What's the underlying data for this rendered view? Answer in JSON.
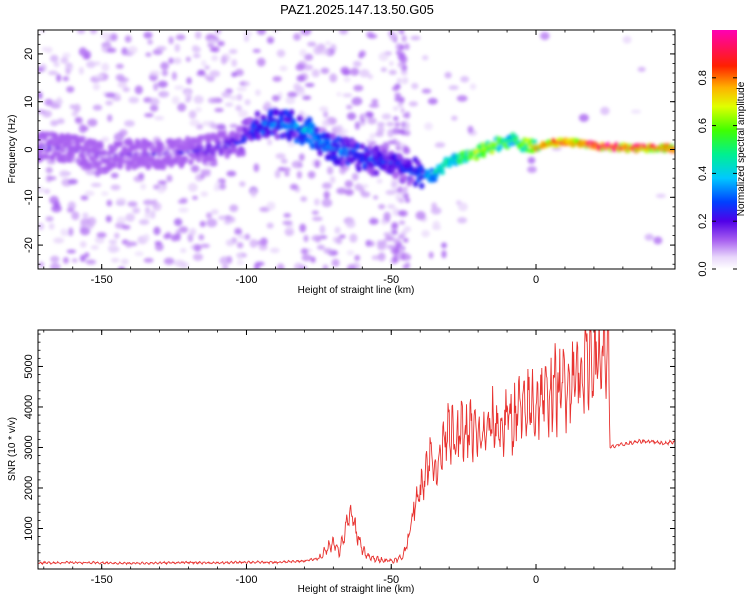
{
  "title": "PAZ1.2025.147.13.50.G05",
  "chart_data": [
    {
      "type": "heatmap",
      "name": "spectrogram",
      "xlabel": "Height of straight line (km)",
      "ylabel": "Frequency (Hz)",
      "xlim": [
        -172,
        48
      ],
      "ylim": [
        -25,
        25
      ],
      "xticks": [
        -150,
        -100,
        -50,
        0
      ],
      "yticks": [
        -20,
        -10,
        0,
        10,
        20
      ],
      "colorbar": {
        "label": "Normalized spectral amplitude",
        "range": [
          0,
          1
        ],
        "ticks": [
          "0.0",
          "0.2",
          "0.4",
          "0.6",
          "0.8"
        ],
        "tick_values": [
          0.0,
          0.2,
          0.4,
          0.6,
          0.8
        ],
        "colormap": "rainbow (white-violet-blue-cyan-green-yellow-red-magenta)"
      },
      "ridge": {
        "x": [
          -170,
          -160,
          -150,
          -140,
          -130,
          -120,
          -110,
          -102,
          -96,
          -90,
          -84,
          -78,
          -72,
          -66,
          -60,
          -54,
          -48,
          -44,
          -40,
          -36,
          -32,
          -28,
          -24,
          -20,
          -16,
          -12,
          -8,
          -4,
          0,
          4,
          8,
          12,
          16,
          20,
          24,
          28,
          32,
          36,
          40,
          44,
          48
        ],
        "y": [
          0.5,
          0.0,
          -1.5,
          -1.0,
          -1.0,
          -0.5,
          0.5,
          1.5,
          5.0,
          5.5,
          5.0,
          3.5,
          0.5,
          -0.5,
          -1.5,
          -2.5,
          -3.0,
          -4.5,
          -5.5,
          -5.5,
          -3.5,
          -2.5,
          -1.5,
          -0.5,
          0.5,
          1.5,
          2.0,
          1.0,
          0.5,
          1.0,
          1.5,
          1.5,
          1.0,
          1.0,
          0.5,
          0.5,
          0.3,
          0.3,
          0.3,
          0.3,
          0.3
        ],
        "amplitude": [
          0.15,
          0.12,
          0.12,
          0.12,
          0.12,
          0.15,
          0.18,
          0.2,
          0.3,
          0.32,
          0.3,
          0.4,
          0.3,
          0.3,
          0.3,
          0.25,
          0.25,
          0.25,
          0.3,
          0.35,
          0.45,
          0.45,
          0.55,
          0.6,
          0.6,
          0.55,
          0.5,
          0.55,
          0.7,
          0.75,
          0.8,
          0.75,
          0.8,
          0.85,
          0.85,
          0.88,
          0.85,
          0.82,
          0.8,
          0.8,
          0.78
        ]
      }
    },
    {
      "type": "line",
      "name": "snr",
      "xlabel": "Height of straight line (km)",
      "ylabel": "SNR (10 * v/v)",
      "xlim": [
        -172,
        48
      ],
      "ylim": [
        0,
        5900
      ],
      "xticks": [
        -150,
        -100,
        -50,
        0
      ],
      "yticks": [
        1000,
        2000,
        3000,
        4000,
        5000
      ],
      "color": "#e8322f",
      "x": [
        -172,
        -160,
        -150,
        -140,
        -130,
        -120,
        -110,
        -100,
        -90,
        -80,
        -75,
        -72,
        -70,
        -68,
        -66,
        -64,
        -62,
        -60,
        -58,
        -56,
        -52,
        -49,
        -46,
        -44,
        -42,
        -40,
        -38,
        -36,
        -34,
        -32,
        -30,
        -28,
        -26,
        -24,
        -22,
        -20,
        -18,
        -16,
        -14,
        -12,
        -10,
        -8,
        -6,
        -4,
        -2,
        0,
        2,
        4,
        6,
        8,
        10,
        12,
        14,
        16,
        18,
        20,
        22,
        24,
        25,
        25.5,
        28,
        32,
        36,
        40,
        44,
        48
      ],
      "y": [
        150,
        160,
        150,
        140,
        150,
        160,
        150,
        170,
        160,
        200,
        260,
        500,
        700,
        400,
        900,
        1400,
        900,
        500,
        300,
        250,
        220,
        200,
        300,
        800,
        1500,
        2000,
        2500,
        2800,
        2400,
        3200,
        3700,
        3000,
        3400,
        3300,
        3500,
        3200,
        3300,
        3500,
        3600,
        3400,
        3800,
        3600,
        4000,
        3800,
        4100,
        4000,
        4300,
        4200,
        4500,
        4400,
        4600,
        4700,
        4800,
        5000,
        5100,
        5300,
        5200,
        5500,
        5700,
        3000,
        3050,
        3100,
        3150,
        3150,
        3100,
        3150
      ]
    }
  ]
}
